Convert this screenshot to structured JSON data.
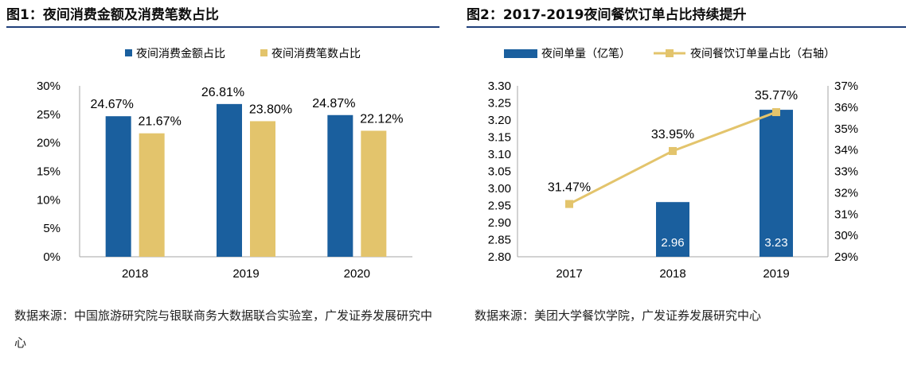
{
  "colors": {
    "blue": "#1a5f9e",
    "gold": "#e3c46c",
    "rule": "#1f3f7a",
    "axis": "#a6a6a6"
  },
  "left": {
    "title": "图1：夜间消费金额及消费笔数占比",
    "source": "数据来源：中国旅游研究院与银联商务大数据联合实验室，广发证券发展研究中心",
    "chart_data": {
      "type": "bar",
      "categories": [
        "2018",
        "2019",
        "2020"
      ],
      "series": [
        {
          "name": "夜间消费金额占比",
          "values": [
            24.67,
            26.81,
            24.87
          ],
          "labels": [
            "24.67%",
            "26.81%",
            "24.87%"
          ]
        },
        {
          "name": "夜间消费笔数占比",
          "values": [
            21.67,
            23.8,
            22.12
          ],
          "labels": [
            "21.67%",
            "23.80%",
            "22.12%"
          ]
        }
      ],
      "y_ticks": [
        "30%",
        "25%",
        "20%",
        "15%",
        "10%",
        "5%",
        "0%"
      ],
      "ylim": [
        0,
        30
      ],
      "legend": "top"
    }
  },
  "right": {
    "title": "图2：2017-2019夜间餐饮订单占比持续提升",
    "source": "数据来源：美团大学餐饮学院，广发证券发展研究中心",
    "chart_data": {
      "type": "bar+line",
      "categories": [
        "2017",
        "2018",
        "2019"
      ],
      "bar_series": {
        "name": "夜间单量（亿笔）",
        "values": [
          null,
          2.96,
          3.23
        ],
        "labels": [
          "",
          "2.96",
          "3.23"
        ]
      },
      "line_series": {
        "name": "夜间餐饮订单量占比（右轴）",
        "values": [
          31.47,
          33.95,
          35.77
        ],
        "labels": [
          "31.47%",
          "33.95%",
          "35.77%"
        ]
      },
      "y_left_ticks": [
        "3.30",
        "3.25",
        "3.20",
        "3.15",
        "3.10",
        "3.05",
        "3.00",
        "2.95",
        "2.90",
        "2.85",
        "2.80"
      ],
      "y_left_lim": [
        2.8,
        3.3
      ],
      "y_right_ticks": [
        "37%",
        "36%",
        "35%",
        "34%",
        "33%",
        "32%",
        "31%",
        "30%",
        "29%"
      ],
      "y_right_lim": [
        29,
        37
      ],
      "legend": "top"
    }
  }
}
